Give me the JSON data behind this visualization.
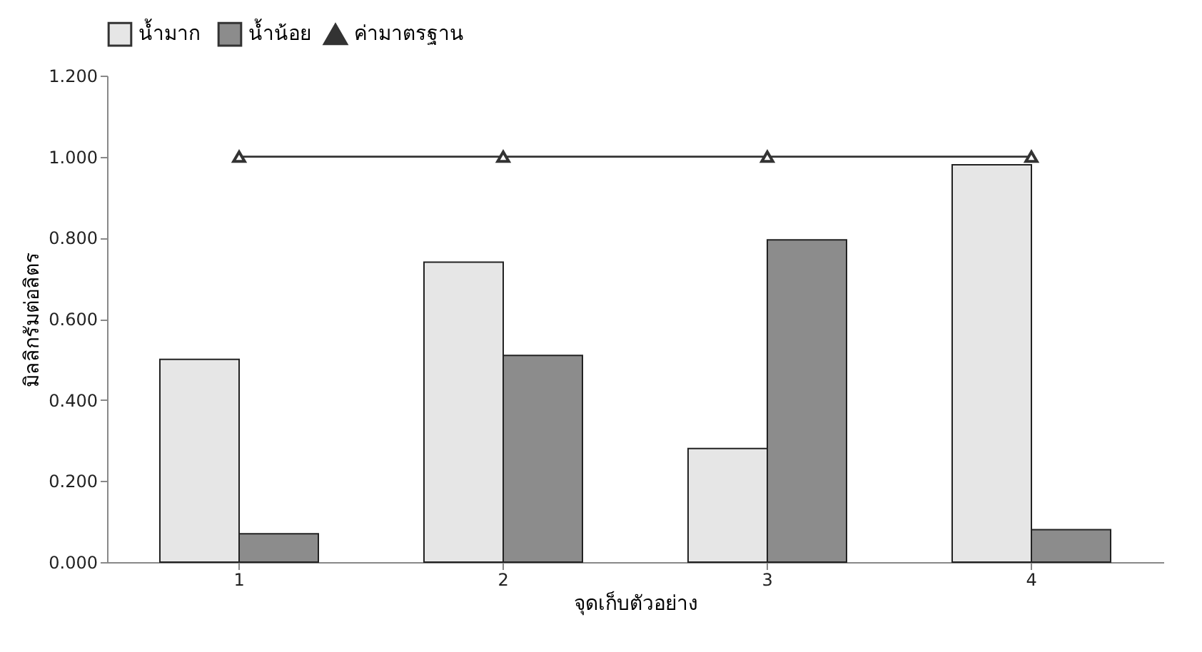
{
  "chart_data": {
    "type": "bar",
    "xlabel": "จุดเก็บตัวอย่าง",
    "ylabel": "มิลลิกรัมต่อลิตร",
    "categories": [
      "1",
      "2",
      "3",
      "4"
    ],
    "series": [
      {
        "name": "น้ำมาก",
        "color": "#e6e6e6",
        "values": [
          0.5,
          0.74,
          0.28,
          0.98
        ]
      },
      {
        "name": "น้ำน้อย",
        "color": "#8c8c8c",
        "values": [
          0.07,
          0.51,
          0.795,
          0.08
        ]
      },
      {
        "name": "ค่ามาตรฐาน",
        "type": "line",
        "color": "#333333",
        "marker": "triangle",
        "values": [
          1.0,
          1.0,
          1.0,
          1.0
        ]
      }
    ],
    "ylim": [
      0,
      1.2
    ],
    "yticks": [
      {
        "value": 0,
        "label": "0.000"
      },
      {
        "value": 0.2,
        "label": "0.200"
      },
      {
        "value": 0.4,
        "label": "0.400"
      },
      {
        "value": 0.6,
        "label": "0.600"
      },
      {
        "value": 0.8,
        "label": "0.800"
      },
      {
        "value": 1.0,
        "label": "1.000"
      },
      {
        "value": 1.2,
        "label": "1.200"
      }
    ],
    "grid": false,
    "legend": "top"
  }
}
